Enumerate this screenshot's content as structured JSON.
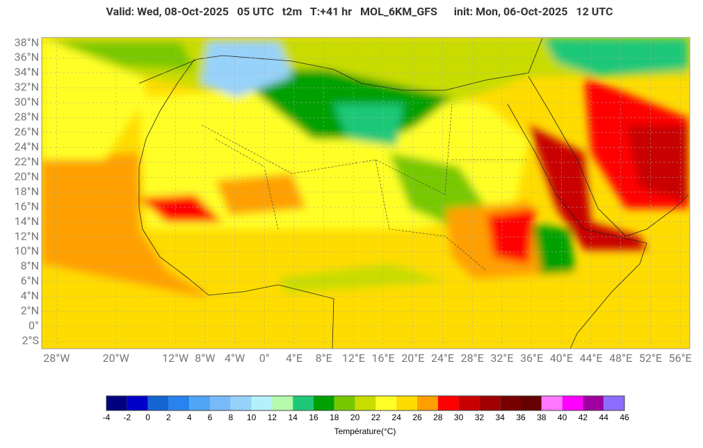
{
  "header": {
    "title": "Valid: Wed, 08-Oct-2025   05 UTC   t2m   T:+41 hr   MOL_6KM_GFS      init: Mon, 06-Oct-2025   12 UTC"
  },
  "map": {
    "xlim": [
      -30,
      57.3
    ],
    "ylim": [
      -3,
      38.75
    ],
    "yticks": [
      {
        "value": 38,
        "label": "38°N"
      },
      {
        "value": 36,
        "label": "36°N"
      },
      {
        "value": 34,
        "label": "34°N"
      },
      {
        "value": 32,
        "label": "32°N"
      },
      {
        "value": 30,
        "label": "30°N"
      },
      {
        "value": 28,
        "label": "28°N"
      },
      {
        "value": 26,
        "label": "26°N"
      },
      {
        "value": 24,
        "label": "24°N"
      },
      {
        "value": 22,
        "label": "22°N"
      },
      {
        "value": 20,
        "label": "20°N"
      },
      {
        "value": 18,
        "label": "18°N"
      },
      {
        "value": 16,
        "label": "16°N"
      },
      {
        "value": 14,
        "label": "14°N"
      },
      {
        "value": 12,
        "label": "12°N"
      },
      {
        "value": 10,
        "label": "10°N"
      },
      {
        "value": 8,
        "label": "8°N"
      },
      {
        "value": 6,
        "label": "6°N"
      },
      {
        "value": 4,
        "label": "4°N"
      },
      {
        "value": 2,
        "label": "2°N"
      },
      {
        "value": 0,
        "label": "0°"
      },
      {
        "value": -2,
        "label": "2°S"
      }
    ],
    "xticks": [
      {
        "value": -28,
        "label": "28°W"
      },
      {
        "value": -20,
        "label": "20°W"
      },
      {
        "value": -12,
        "label": "12°W"
      },
      {
        "value": -8,
        "label": "8°W"
      },
      {
        "value": -4,
        "label": "4°W"
      },
      {
        "value": 0,
        "label": "0°"
      },
      {
        "value": 4,
        "label": "4°E"
      },
      {
        "value": 8,
        "label": "8°E"
      },
      {
        "value": 12,
        "label": "12°E"
      },
      {
        "value": 16,
        "label": "16°E"
      },
      {
        "value": 20,
        "label": "20°E"
      },
      {
        "value": 24,
        "label": "24°E"
      },
      {
        "value": 28,
        "label": "28°E"
      },
      {
        "value": 32,
        "label": "32°E"
      },
      {
        "value": 36,
        "label": "36°E"
      },
      {
        "value": 40,
        "label": "40°E"
      },
      {
        "value": 44,
        "label": "44°E"
      },
      {
        "value": 48,
        "label": "48°E"
      },
      {
        "value": 52,
        "label": "52°E"
      },
      {
        "value": 56,
        "label": "56°E"
      }
    ]
  },
  "colorbar": {
    "title": "Température(°C)",
    "bounds": [
      -4,
      -2,
      0,
      2,
      4,
      6,
      8,
      10,
      12,
      14,
      16,
      18,
      20,
      22,
      24,
      26,
      28,
      30,
      32,
      34,
      36,
      38,
      40,
      42,
      44,
      46
    ],
    "colors": [
      "#000080",
      "#0000c8",
      "#1464d2",
      "#2882f0",
      "#50a5f5",
      "#78b9fa",
      "#96d2fa",
      "#b4f0fa",
      "#b4faaa",
      "#1ec878",
      "#00a000",
      "#78c800",
      "#c8dc00",
      "#ffff28",
      "#ffdc00",
      "#ffa000",
      "#ff0000",
      "#c80000",
      "#a00000",
      "#780000",
      "#640000",
      "#ff78ff",
      "#ff00ff",
      "#a000a0",
      "#8c6cff"
    ]
  }
}
